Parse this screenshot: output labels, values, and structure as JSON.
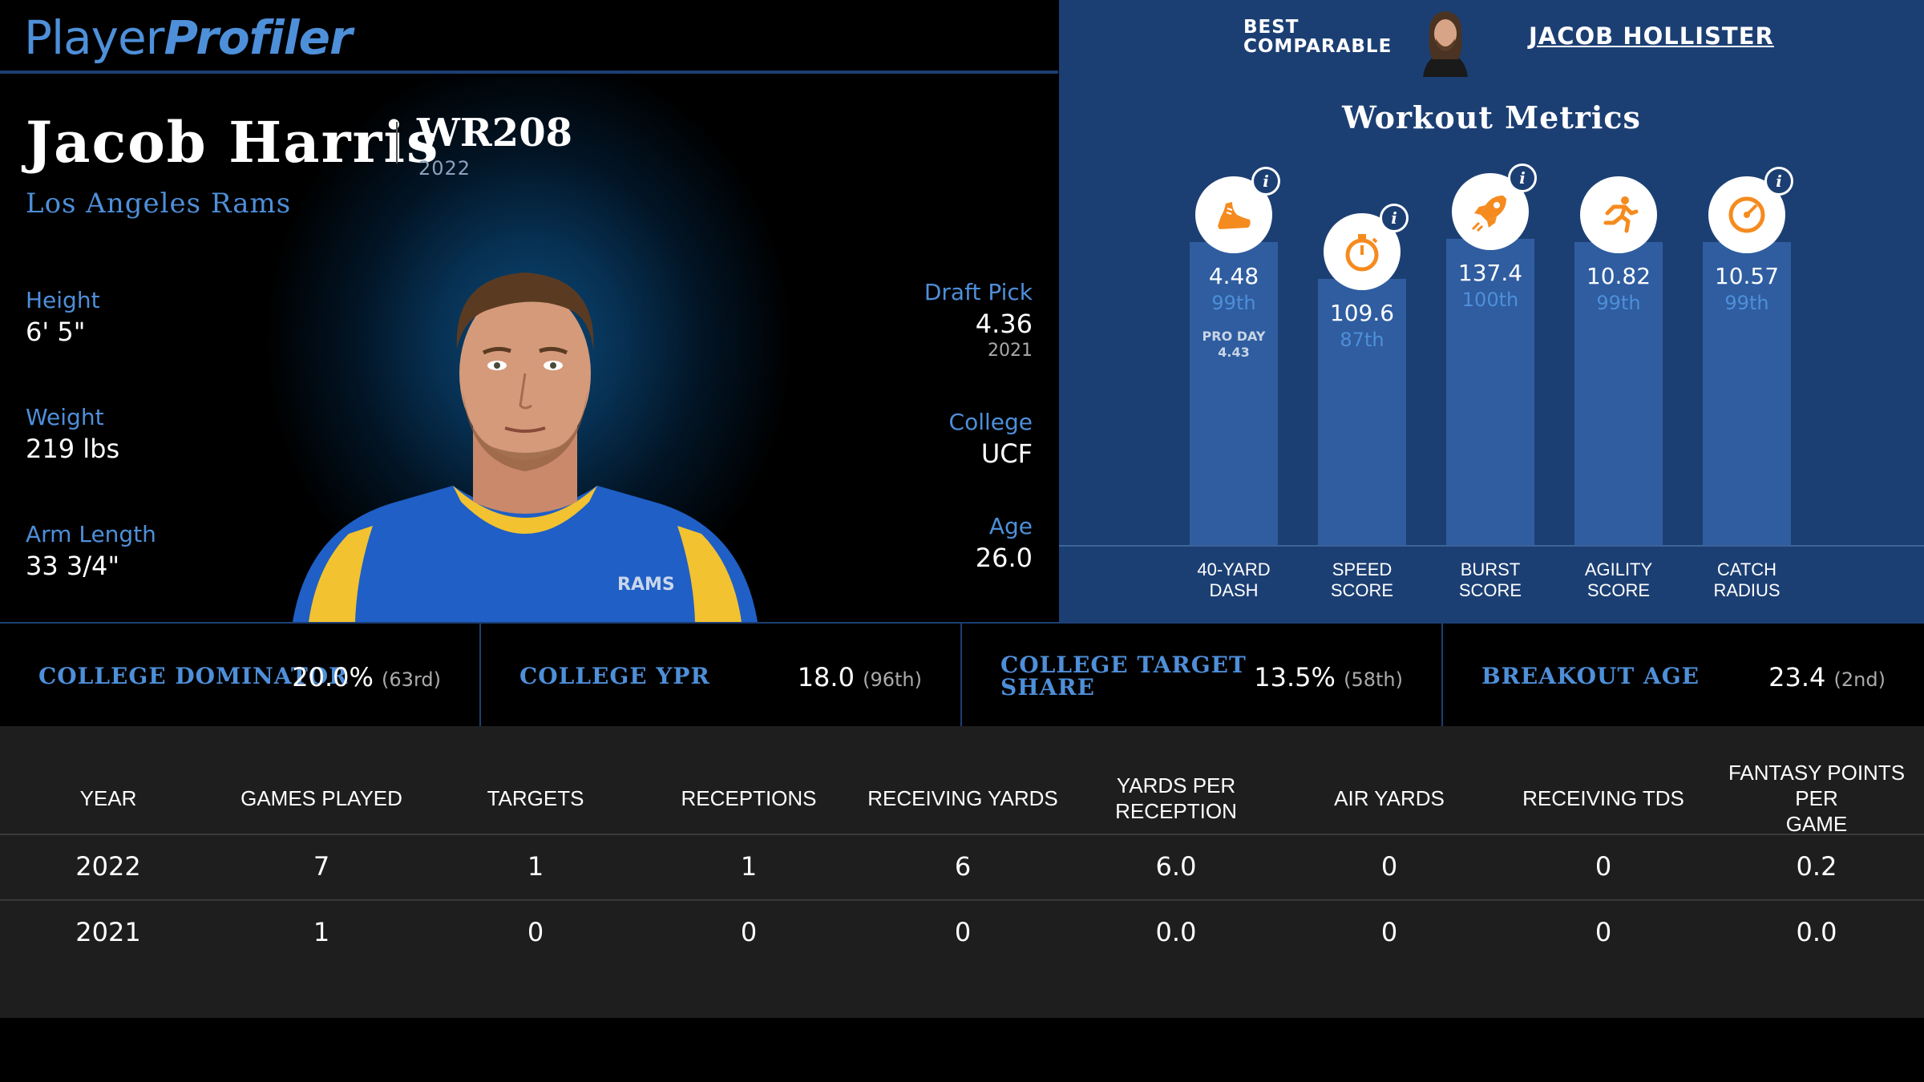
{
  "header": {
    "logo_part1": "Player",
    "logo_part2": "Profiler",
    "comparable_label_line1": "BEST",
    "comparable_label_line2": "COMPARABLE",
    "comparable_name": "JACOB HOLLISTER"
  },
  "player": {
    "name": "Jacob Harris",
    "position_rank": "WR208",
    "year": "2022",
    "team": "Los Angeles Rams",
    "left_stats": [
      {
        "label": "Height",
        "value": "6' 5\""
      },
      {
        "label": "Weight",
        "value": "219 lbs"
      },
      {
        "label": "Arm Length",
        "value": "33 3/4\""
      }
    ],
    "right_stats": [
      {
        "label": "Draft Pick",
        "value": "4.36",
        "sub": "2021"
      },
      {
        "label": "College",
        "value": "UCF"
      },
      {
        "label": "Age",
        "value": "26.0"
      }
    ],
    "jersey_text": "RAMS"
  },
  "workout": {
    "title": "Workout Metrics",
    "metrics": [
      {
        "icon": "shoe-icon",
        "value": "4.48",
        "percentile": "99th",
        "extra_line1": "PRO DAY",
        "extra_line2": "4.43",
        "label_line1": "40-YARD",
        "label_line2": "DASH",
        "percentile_num": 99
      },
      {
        "icon": "stopwatch-icon",
        "value": "109.6",
        "percentile": "87th",
        "label_line1": "SPEED",
        "label_line2": "SCORE",
        "percentile_num": 87
      },
      {
        "icon": "rocket-icon",
        "value": "137.4",
        "percentile": "100th",
        "label_line1": "BURST",
        "label_line2": "SCORE",
        "percentile_num": 100
      },
      {
        "icon": "runner-icon",
        "value": "10.82",
        "percentile": "99th",
        "label_line1": "AGILITY",
        "label_line2": "SCORE",
        "percentile_num": 99
      },
      {
        "icon": "target-icon",
        "value": "10.57",
        "percentile": "99th",
        "label_line1": "CATCH",
        "label_line2": "RADIUS",
        "percentile_num": 99
      }
    ]
  },
  "college_metrics": [
    {
      "label_line1": "COLLEGE DOMINATOR",
      "label_line2": "",
      "value": "20.0%",
      "rank": "(63rd)"
    },
    {
      "label_line1": "COLLEGE YPR",
      "label_line2": "",
      "value": "18.0",
      "rank": "(96th)"
    },
    {
      "label_line1": "COLLEGE TARGET",
      "label_line2": "SHARE",
      "value": "13.5%",
      "rank": "(58th)"
    },
    {
      "label_line1": "BREAKOUT AGE",
      "label_line2": "",
      "value": "23.4",
      "rank": "(2nd)"
    }
  ],
  "stats_table": {
    "headers": [
      [
        "YEAR"
      ],
      [
        "GAMES PLAYED"
      ],
      [
        "TARGETS"
      ],
      [
        "RECEPTIONS"
      ],
      [
        "RECEIVING YARDS"
      ],
      [
        "YARDS PER RECEPTION"
      ],
      [
        "AIR YARDS"
      ],
      [
        "RECEIVING TDS"
      ],
      [
        "FANTASY POINTS PER",
        "GAME"
      ]
    ],
    "rows": [
      [
        "2022",
        "7",
        "1",
        "1",
        "6",
        "6.0",
        "0",
        "0",
        "0.2"
      ],
      [
        "2021",
        "1",
        "0",
        "0",
        "0",
        "0.0",
        "0",
        "0",
        "0.0"
      ]
    ]
  },
  "colors": {
    "accent_blue": "#4e8fd9",
    "panel_blue": "#1c3f73",
    "bar_blue": "#2f5da0",
    "icon_orange": "#f58b1f"
  }
}
